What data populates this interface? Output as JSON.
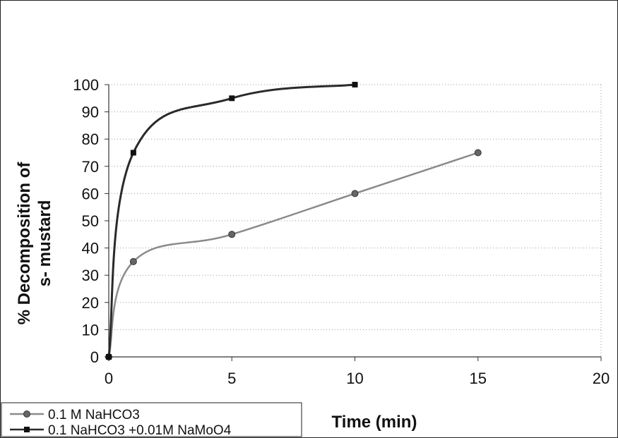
{
  "chart_data": {
    "type": "line",
    "title": "",
    "xlabel": "Time (min)",
    "ylabel": "% Decomposition of s- mustard",
    "ylabel_lines": [
      "% Decomposition of",
      "s- mustard"
    ],
    "xlim": [
      0,
      20
    ],
    "ylim": [
      0,
      100
    ],
    "x_ticks": [
      0,
      5,
      10,
      15,
      20
    ],
    "y_ticks": [
      0,
      10,
      20,
      30,
      40,
      50,
      60,
      70,
      80,
      90,
      100
    ],
    "grid": "dotted horizontal",
    "legend_position": "bottom-left",
    "series": [
      {
        "name": "0.1 M NaHCO3",
        "marker": "circle",
        "color": "#8a8a8a",
        "x": [
          0,
          1,
          5,
          10,
          15
        ],
        "y": [
          0,
          35,
          45,
          60,
          75
        ]
      },
      {
        "name": "0.1 NaHCO3 +0.01M NaMoO4",
        "marker": "square",
        "color": "#2a2a2a",
        "x": [
          0,
          1,
          5,
          10
        ],
        "y": [
          0,
          75,
          95,
          100
        ]
      }
    ]
  }
}
